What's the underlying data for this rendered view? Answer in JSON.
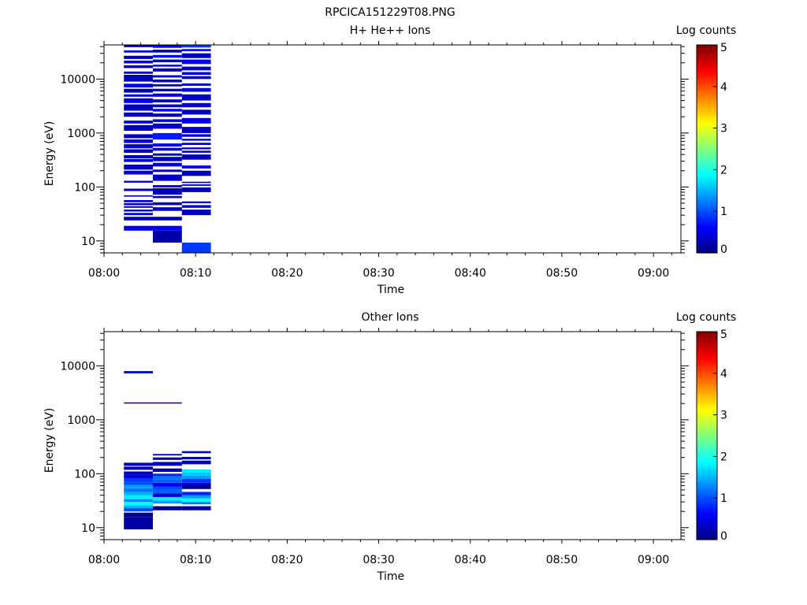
{
  "figure_title": "RPCICA151229T08.PNG",
  "chart_data": [
    {
      "type": "heatmap",
      "title": "H+ He++ Ions",
      "xlabel": "Time",
      "ylabel": "Energy (eV)",
      "xlim": [
        "08:00",
        "09:03"
      ],
      "ylim": [
        6,
        43000
      ],
      "yscale": "log",
      "xticks": [
        "08:00",
        "08:10",
        "08:20",
        "08:30",
        "08:40",
        "08:50",
        "09:00"
      ],
      "yticks": [
        "10",
        "100",
        "1000",
        "10000"
      ],
      "colorbar": {
        "label": "Log counts",
        "range": [
          0,
          5
        ],
        "ticks": [
          "0",
          "1",
          "2",
          "3",
          "4",
          "5"
        ]
      },
      "columns": [
        {
          "t_start": "08:02:10",
          "t_end": "08:05:20",
          "bins": [
            {
              "e_min": 15.5,
              "e_max": 19,
              "v": 0.55
            },
            {
              "e_min": 24,
              "e_max": 28,
              "v": 0.3
            },
            {
              "e_min": 30,
              "e_max": 33,
              "v": 0.5
            },
            {
              "e_min": 35,
              "e_max": 38,
              "v": 0.3
            },
            {
              "e_min": 41,
              "e_max": 44,
              "v": 0.45
            },
            {
              "e_min": 46,
              "e_max": 50,
              "v": 0.3
            },
            {
              "e_min": 52,
              "e_max": 57,
              "v": 0.5
            },
            {
              "e_min": 66,
              "e_max": 70,
              "v": 0.4
            },
            {
              "e_min": 84,
              "e_max": 93,
              "v": 0.3
            },
            {
              "e_min": 120,
              "e_max": 130,
              "v": 0.5
            },
            {
              "e_min": 170,
              "e_max": 200,
              "v": 0.4
            },
            {
              "e_min": 210,
              "e_max": 260,
              "v": 0.3
            },
            {
              "e_min": 290,
              "e_max": 330,
              "v": 0.5
            },
            {
              "e_min": 340,
              "e_max": 390,
              "v": 0.3
            },
            {
              "e_min": 430,
              "e_max": 500,
              "v": 0.4
            },
            {
              "e_min": 520,
              "e_max": 620,
              "v": 0.5
            },
            {
              "e_min": 650,
              "e_max": 760,
              "v": 0.6
            },
            {
              "e_min": 800,
              "e_max": 950,
              "v": 0.35
            },
            {
              "e_min": 1100,
              "e_max": 1400,
              "v": 0.3
            },
            {
              "e_min": 1500,
              "e_max": 1700,
              "v": 0.5
            },
            {
              "e_min": 2000,
              "e_max": 2400,
              "v": 0.4
            },
            {
              "e_min": 2600,
              "e_max": 3400,
              "v": 0.3
            },
            {
              "e_min": 3600,
              "e_max": 4400,
              "v": 0.5
            },
            {
              "e_min": 4700,
              "e_max": 5200,
              "v": 0.35
            },
            {
              "e_min": 5600,
              "e_max": 6600,
              "v": 0.3
            },
            {
              "e_min": 7000,
              "e_max": 8200,
              "v": 0.5
            },
            {
              "e_min": 9000,
              "e_max": 12000,
              "v": 0.3
            },
            {
              "e_min": 12500,
              "e_max": 13800,
              "v": 0.5
            },
            {
              "e_min": 16000,
              "e_max": 18000,
              "v": 0.4
            },
            {
              "e_min": 19500,
              "e_max": 22000,
              "v": 0.5
            },
            {
              "e_min": 23500,
              "e_max": 27000,
              "v": 0.35
            },
            {
              "e_min": 31000,
              "e_max": 34000,
              "v": 0.5
            },
            {
              "e_min": 39000,
              "e_max": 43000,
              "v": 0.3
            }
          ]
        },
        {
          "t_start": "08:05:20",
          "t_end": "08:08:30",
          "bins": [
            {
              "e_min": 9.3,
              "e_max": 15.5,
              "v": 0.2
            },
            {
              "e_min": 15.5,
              "e_max": 19,
              "v": 0.6
            },
            {
              "e_min": 24,
              "e_max": 28,
              "v": 0.3
            },
            {
              "e_min": 36,
              "e_max": 42,
              "v": 0.4
            },
            {
              "e_min": 46,
              "e_max": 52,
              "v": 0.3
            },
            {
              "e_min": 62,
              "e_max": 68,
              "v": 0.5
            },
            {
              "e_min": 72,
              "e_max": 95,
              "v": 0.3
            },
            {
              "e_min": 98,
              "e_max": 108,
              "v": 0.45
            },
            {
              "e_min": 130,
              "e_max": 170,
              "v": 0.3
            },
            {
              "e_min": 190,
              "e_max": 210,
              "v": 0.4
            },
            {
              "e_min": 240,
              "e_max": 280,
              "v": 0.5
            },
            {
              "e_min": 300,
              "e_max": 360,
              "v": 0.3
            },
            {
              "e_min": 380,
              "e_max": 420,
              "v": 0.4
            },
            {
              "e_min": 470,
              "e_max": 530,
              "v": 0.35
            },
            {
              "e_min": 560,
              "e_max": 640,
              "v": 0.6
            },
            {
              "e_min": 760,
              "e_max": 1000,
              "v": 0.75
            },
            {
              "e_min": 1200,
              "e_max": 1500,
              "v": 0.4
            },
            {
              "e_min": 1600,
              "e_max": 1800,
              "v": 0.5
            },
            {
              "e_min": 2000,
              "e_max": 2300,
              "v": 0.3
            },
            {
              "e_min": 2500,
              "e_max": 2800,
              "v": 0.6
            },
            {
              "e_min": 3000,
              "e_max": 3400,
              "v": 0.45
            },
            {
              "e_min": 3700,
              "e_max": 4200,
              "v": 0.3
            },
            {
              "e_min": 4700,
              "e_max": 5400,
              "v": 0.5
            },
            {
              "e_min": 5900,
              "e_max": 6600,
              "v": 0.35
            },
            {
              "e_min": 7300,
              "e_max": 8000,
              "v": 0.3
            },
            {
              "e_min": 8700,
              "e_max": 9800,
              "v": 0.5
            },
            {
              "e_min": 10700,
              "e_max": 11800,
              "v": 0.45
            },
            {
              "e_min": 13800,
              "e_max": 15800,
              "v": 0.3
            },
            {
              "e_min": 17000,
              "e_max": 18500,
              "v": 0.5
            },
            {
              "e_min": 20500,
              "e_max": 23000,
              "v": 0.35
            },
            {
              "e_min": 25000,
              "e_max": 28000,
              "v": 0.6
            },
            {
              "e_min": 31000,
              "e_max": 35000,
              "v": 0.3
            },
            {
              "e_min": 38000,
              "e_max": 43000,
              "v": 0.5
            }
          ]
        },
        {
          "t_start": "08:08:30",
          "t_end": "08:11:40",
          "bins": [
            {
              "e_min": 6,
              "e_max": 9.3,
              "v": 0.9
            },
            {
              "e_min": 30,
              "e_max": 38,
              "v": 0.3
            },
            {
              "e_min": 41,
              "e_max": 46,
              "v": 0.5
            },
            {
              "e_min": 50,
              "e_max": 54,
              "v": 0.4
            },
            {
              "e_min": 80,
              "e_max": 98,
              "v": 0.3
            },
            {
              "e_min": 105,
              "e_max": 112,
              "v": 0.6
            },
            {
              "e_min": 118,
              "e_max": 125,
              "v": 0.35
            },
            {
              "e_min": 160,
              "e_max": 200,
              "v": 0.3
            },
            {
              "e_min": 220,
              "e_max": 250,
              "v": 0.5
            },
            {
              "e_min": 320,
              "e_max": 400,
              "v": 0.3
            },
            {
              "e_min": 430,
              "e_max": 470,
              "v": 0.5
            },
            {
              "e_min": 500,
              "e_max": 540,
              "v": 0.35
            },
            {
              "e_min": 600,
              "e_max": 660,
              "v": 0.6
            },
            {
              "e_min": 720,
              "e_max": 780,
              "v": 0.3
            },
            {
              "e_min": 850,
              "e_max": 950,
              "v": 0.45
            },
            {
              "e_min": 1000,
              "e_max": 1300,
              "v": 0.3
            },
            {
              "e_min": 1500,
              "e_max": 1900,
              "v": 0.5
            },
            {
              "e_min": 2200,
              "e_max": 2700,
              "v": 0.3
            },
            {
              "e_min": 3000,
              "e_max": 3600,
              "v": 0.45
            },
            {
              "e_min": 4000,
              "e_max": 5200,
              "v": 0.3
            },
            {
              "e_min": 5800,
              "e_max": 6800,
              "v": 0.5
            },
            {
              "e_min": 7500,
              "e_max": 8300,
              "v": 0.35
            },
            {
              "e_min": 10000,
              "e_max": 11300,
              "v": 0.45
            },
            {
              "e_min": 12000,
              "e_max": 13500,
              "v": 0.5
            },
            {
              "e_min": 14500,
              "e_max": 17000,
              "v": 0.3
            },
            {
              "e_min": 19000,
              "e_max": 23000,
              "v": 0.5
            },
            {
              "e_min": 24500,
              "e_max": 30000,
              "v": 0.3
            },
            {
              "e_min": 33000,
              "e_max": 36000,
              "v": 0.6
            },
            {
              "e_min": 38500,
              "e_max": 43000,
              "v": 0.9
            }
          ]
        }
      ]
    },
    {
      "type": "heatmap",
      "title": "Other Ions",
      "xlabel": "Time",
      "ylabel": "Energy (eV)",
      "xlim": [
        "08:00",
        "09:03"
      ],
      "ylim": [
        6,
        43000
      ],
      "yscale": "log",
      "xticks": [
        "08:00",
        "08:10",
        "08:20",
        "08:30",
        "08:40",
        "08:50",
        "09:00"
      ],
      "yticks": [
        "10",
        "100",
        "1000",
        "10000"
      ],
      "colorbar": {
        "label": "Log counts",
        "range": [
          0,
          5
        ],
        "ticks": [
          "0",
          "1",
          "2",
          "3",
          "4",
          "5"
        ]
      },
      "columns": [
        {
          "t_start": "08:02:10",
          "t_end": "08:05:20",
          "bins": [
            {
              "e_min": 9.3,
              "e_max": 15.5,
              "v": 0.2
            },
            {
              "e_min": 15.5,
              "e_max": 19,
              "v": 0.1
            },
            {
              "e_min": 20,
              "e_max": 23,
              "v": 1.0
            },
            {
              "e_min": 23,
              "e_max": 26,
              "v": 1.5
            },
            {
              "e_min": 26,
              "e_max": 30,
              "v": 1.9
            },
            {
              "e_min": 30,
              "e_max": 34,
              "v": 1.3
            },
            {
              "e_min": 34,
              "e_max": 40,
              "v": 1.8
            },
            {
              "e_min": 40,
              "e_max": 46,
              "v": 1.5
            },
            {
              "e_min": 46,
              "e_max": 54,
              "v": 1.2
            },
            {
              "e_min": 54,
              "e_max": 62,
              "v": 1.4
            },
            {
              "e_min": 62,
              "e_max": 72,
              "v": 1.0
            },
            {
              "e_min": 72,
              "e_max": 82,
              "v": 0.9
            },
            {
              "e_min": 82,
              "e_max": 95,
              "v": 0.5
            },
            {
              "e_min": 95,
              "e_max": 110,
              "v": 0.4
            },
            {
              "e_min": 118,
              "e_max": 135,
              "v": 0.3
            },
            {
              "e_min": 140,
              "e_max": 160,
              "v": 0.2
            },
            {
              "e_min": 2000,
              "e_max": 2100,
              "v": 0.4
            },
            {
              "e_min": 7200,
              "e_max": 8000,
              "v": 0.7
            }
          ]
        },
        {
          "t_start": "08:05:20",
          "t_end": "08:08:30",
          "bins": [
            {
              "e_min": 21,
              "e_max": 25,
              "v": 0.1
            },
            {
              "e_min": 28,
              "e_max": 32,
              "v": 1.4
            },
            {
              "e_min": 32,
              "e_max": 37,
              "v": 1.8
            },
            {
              "e_min": 37,
              "e_max": 43,
              "v": 0.4
            },
            {
              "e_min": 43,
              "e_max": 50,
              "v": 1.1
            },
            {
              "e_min": 50,
              "e_max": 58,
              "v": 1.0
            },
            {
              "e_min": 58,
              "e_max": 68,
              "v": 0.6
            },
            {
              "e_min": 68,
              "e_max": 78,
              "v": 1.1
            },
            {
              "e_min": 78,
              "e_max": 90,
              "v": 1.2
            },
            {
              "e_min": 90,
              "e_max": 100,
              "v": 0.8
            },
            {
              "e_min": 108,
              "e_max": 125,
              "v": 0.2
            },
            {
              "e_min": 140,
              "e_max": 165,
              "v": 0.3
            },
            {
              "e_min": 180,
              "e_max": 200,
              "v": 0.2
            },
            {
              "e_min": 218,
              "e_max": 232,
              "v": 0.4
            },
            {
              "e_min": 2000,
              "e_max": 2100,
              "v": 0.4
            }
          ]
        },
        {
          "t_start": "08:08:30",
          "t_end": "08:11:40",
          "bins": [
            {
              "e_min": 21,
              "e_max": 25,
              "v": 0.2
            },
            {
              "e_min": 27,
              "e_max": 30,
              "v": 1.2
            },
            {
              "e_min": 30,
              "e_max": 35,
              "v": 1.9
            },
            {
              "e_min": 35,
              "e_max": 40,
              "v": 1.4
            },
            {
              "e_min": 40,
              "e_max": 46,
              "v": 0.8
            },
            {
              "e_min": 52,
              "e_max": 60,
              "v": 0.1
            },
            {
              "e_min": 60,
              "e_max": 68,
              "v": 0.4
            },
            {
              "e_min": 68,
              "e_max": 80,
              "v": 0.9
            },
            {
              "e_min": 80,
              "e_max": 92,
              "v": 1.4
            },
            {
              "e_min": 92,
              "e_max": 106,
              "v": 1.6
            },
            {
              "e_min": 106,
              "e_max": 120,
              "v": 1.8
            },
            {
              "e_min": 150,
              "e_max": 175,
              "v": 0.3
            },
            {
              "e_min": 185,
              "e_max": 205,
              "v": 0.2
            },
            {
              "e_min": 240,
              "e_max": 262,
              "v": 0.4
            }
          ]
        }
      ]
    }
  ]
}
